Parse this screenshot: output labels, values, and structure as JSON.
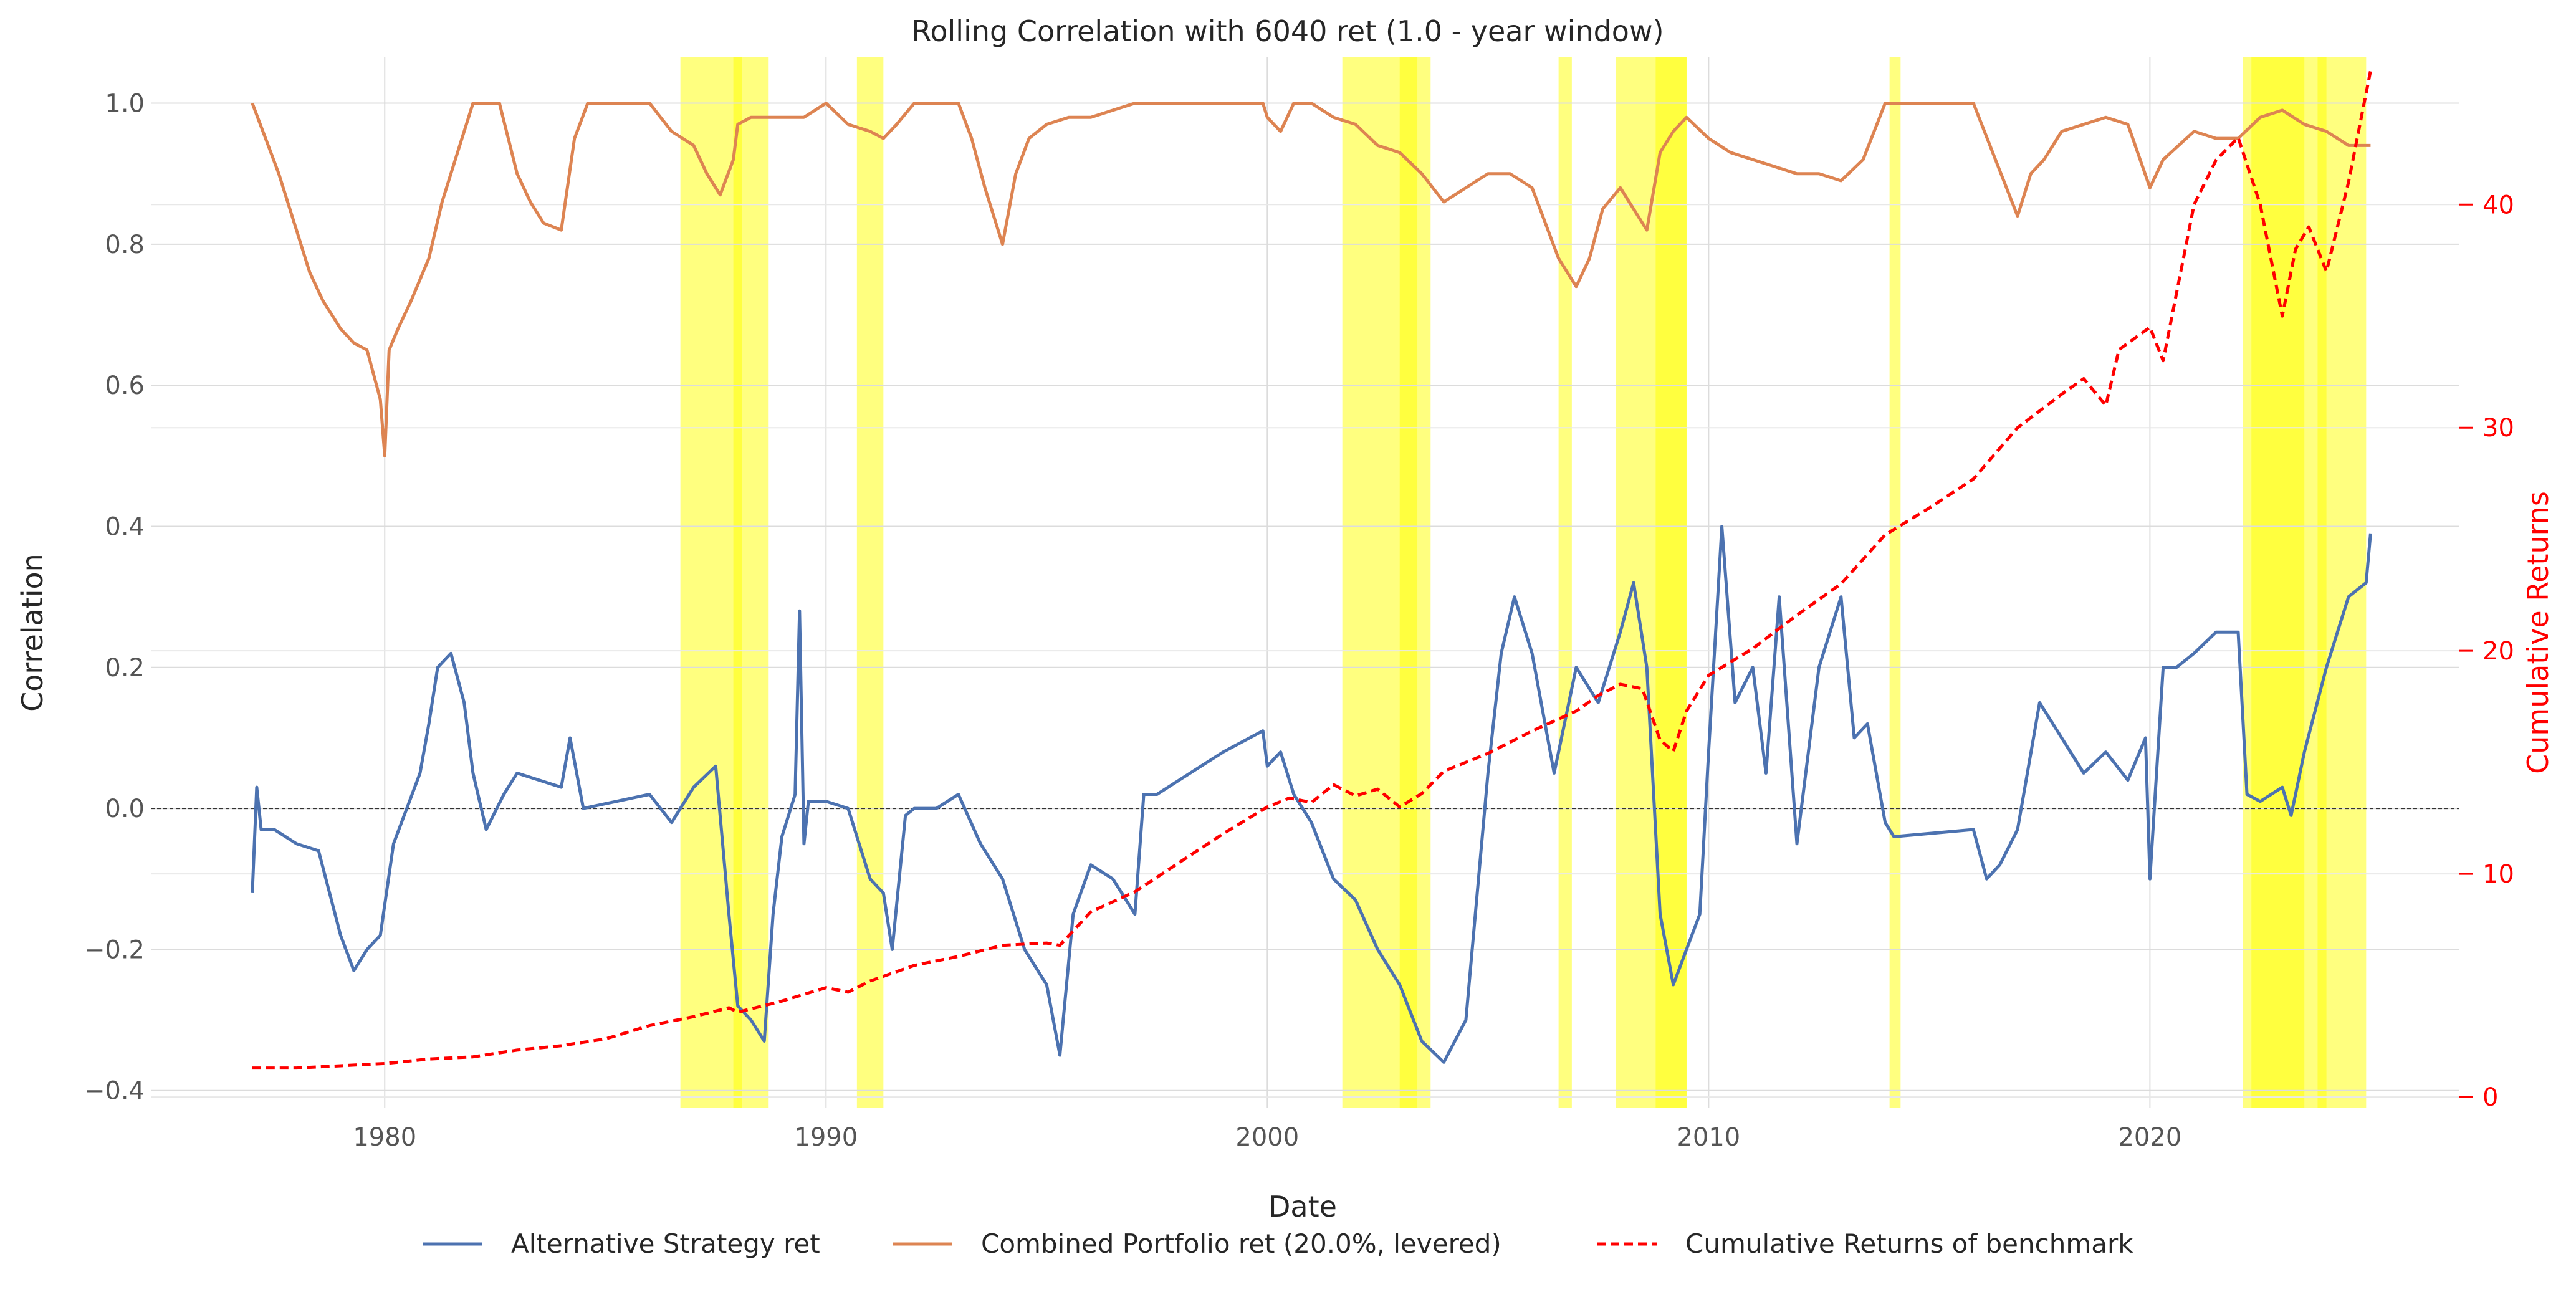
{
  "chart_data": {
    "type": "line",
    "title": "Rolling Correlation with 6040 ret (1.0 - year window)",
    "xlabel": "Date",
    "ylabel": "Correlation",
    "ylabel_right": "Cumulative Returns",
    "xlim": [
      1974.7,
      2027.0
    ],
    "ylim": [
      -0.425,
      1.065
    ],
    "ylim_right": [
      -0.5,
      46.6
    ],
    "x_ticks": [
      1980,
      1990,
      2000,
      2010,
      2020
    ],
    "x_tick_labels": [
      "1980",
      "1990",
      "2000",
      "2010",
      "2020"
    ],
    "y_ticks": [
      -0.4,
      -0.2,
      0.0,
      0.2,
      0.4,
      0.6,
      0.8,
      1.0
    ],
    "y_tick_labels": [
      "−0.4",
      "−0.2",
      "0.0",
      "0.2",
      "0.4",
      "0.6",
      "0.8",
      "1.0"
    ],
    "y_right_ticks": [
      0,
      10,
      20,
      30,
      40
    ],
    "y_right_tick_labels": [
      "0",
      "10",
      "20",
      "30",
      "40"
    ],
    "grid": true,
    "zero_line": 0.0,
    "legend_position": "bottom-center",
    "colors": {
      "alt": "#4c72b0",
      "combined": "#dd8452",
      "benchmark": "#ff0000",
      "shade": "#ffff00",
      "right_axis": "#ff0000"
    },
    "shaded_periods": [
      [
        1986.7,
        1988.7
      ],
      [
        1987.9,
        1988.1
      ],
      [
        1990.7,
        1991.3
      ],
      [
        2001.7,
        2003.7
      ],
      [
        2003.0,
        2003.4
      ],
      [
        2006.6,
        2006.9
      ],
      [
        2007.9,
        2009.5
      ],
      [
        2008.8,
        2009.5
      ],
      [
        2014.1,
        2014.35
      ],
      [
        2022.1,
        2024.9
      ],
      [
        2022.3,
        2023.5
      ],
      [
        2023.8,
        2024.0
      ]
    ],
    "series": [
      {
        "name": "Alternative Strategy ret",
        "axis": "left",
        "style": "solid",
        "x": [
          1977.0,
          1977.1,
          1977.2,
          1977.5,
          1978.0,
          1978.5,
          1979.0,
          1979.3,
          1979.6,
          1979.9,
          1980.2,
          1980.5,
          1980.8,
          1981.0,
          1981.2,
          1981.5,
          1981.8,
          1982.0,
          1982.3,
          1982.7,
          1983.0,
          1983.5,
          1984.0,
          1984.2,
          1984.5,
          1986.0,
          1986.5,
          1987.0,
          1987.5,
          1987.8,
          1988.0,
          1988.3,
          1988.6,
          1988.8,
          1989.0,
          1989.3,
          1989.4,
          1989.5,
          1989.6,
          1990.0,
          1990.5,
          1991.0,
          1991.3,
          1991.5,
          1991.8,
          1992.0,
          1992.5,
          1993.0,
          1993.5,
          1994.0,
          1994.5,
          1995.0,
          1995.3,
          1995.6,
          1996.0,
          1996.5,
          1997.0,
          1997.2,
          1997.5,
          1998.0,
          1999.0,
          1999.9,
          2000.0,
          2000.3,
          2000.6,
          2001.0,
          2001.5,
          2002.0,
          2002.5,
          2003.0,
          2003.5,
          2004.0,
          2004.5,
          2005.0,
          2005.3,
          2005.6,
          2006.0,
          2006.5,
          2007.0,
          2007.5,
          2008.0,
          2008.3,
          2008.6,
          2008.9,
          2009.2,
          2009.5,
          2009.8,
          2010.0,
          2010.3,
          2010.6,
          2011.0,
          2011.3,
          2011.6,
          2012.0,
          2012.5,
          2013.0,
          2013.3,
          2013.6,
          2014.0,
          2014.2,
          2016.0,
          2016.3,
          2016.6,
          2017.0,
          2017.5,
          2018.0,
          2018.5,
          2019.0,
          2019.5,
          2019.9,
          2020.0,
          2020.3,
          2020.6,
          2021.0,
          2021.5,
          2022.0,
          2022.2,
          2022.5,
          2023.0,
          2023.2,
          2023.5,
          2024.0,
          2024.5,
          2024.9,
          2025.0
        ],
        "y": [
          -0.12,
          0.03,
          -0.03,
          -0.03,
          -0.05,
          -0.06,
          -0.18,
          -0.23,
          -0.2,
          -0.18,
          -0.05,
          0.0,
          0.05,
          0.12,
          0.2,
          0.22,
          0.15,
          0.05,
          -0.03,
          0.02,
          0.05,
          0.04,
          0.03,
          0.1,
          0.0,
          0.02,
          -0.02,
          0.03,
          0.06,
          -0.15,
          -0.28,
          -0.3,
          -0.33,
          -0.15,
          -0.04,
          0.02,
          0.28,
          -0.05,
          0.01,
          0.01,
          0.0,
          -0.1,
          -0.12,
          -0.2,
          -0.01,
          0.0,
          0.0,
          0.02,
          -0.05,
          -0.1,
          -0.2,
          -0.25,
          -0.35,
          -0.15,
          -0.08,
          -0.1,
          -0.15,
          0.02,
          0.02,
          0.04,
          0.08,
          0.11,
          0.06,
          0.08,
          0.02,
          -0.02,
          -0.1,
          -0.13,
          -0.2,
          -0.25,
          -0.33,
          -0.36,
          -0.3,
          0.05,
          0.22,
          0.3,
          0.22,
          0.05,
          0.2,
          0.15,
          0.25,
          0.32,
          0.2,
          -0.15,
          -0.25,
          -0.2,
          -0.15,
          0.08,
          0.4,
          0.15,
          0.2,
          0.05,
          0.3,
          -0.05,
          0.2,
          0.3,
          0.1,
          0.12,
          -0.02,
          -0.04,
          -0.03,
          -0.1,
          -0.08,
          -0.03,
          0.15,
          0.1,
          0.05,
          0.08,
          0.04,
          0.1,
          -0.1,
          0.2,
          0.2,
          0.22,
          0.25,
          0.25,
          0.02,
          0.01,
          0.03,
          -0.01,
          0.08,
          0.2,
          0.3,
          0.32,
          0.39
        ]
      },
      {
        "name": "Combined Portfolio ret (20.0%, levered)",
        "axis": "left",
        "style": "solid",
        "x": [
          1977.0,
          1977.3,
          1977.6,
          1978.0,
          1978.3,
          1978.6,
          1979.0,
          1979.3,
          1979.6,
          1979.9,
          1980.0,
          1980.1,
          1980.3,
          1980.6,
          1981.0,
          1981.3,
          1981.6,
          1982.0,
          1982.3,
          1982.6,
          1983.0,
          1983.3,
          1983.6,
          1984.0,
          1984.3,
          1984.6,
          1985.0,
          1985.5,
          1986.0,
          1986.5,
          1987.0,
          1987.3,
          1987.6,
          1987.9,
          1988.0,
          1988.3,
          1988.6,
          1989.0,
          1989.5,
          1990.0,
          1990.5,
          1991.0,
          1991.3,
          1991.6,
          1992.0,
          1992.5,
          1993.0,
          1993.3,
          1993.6,
          1993.9,
          1994.0,
          1994.3,
          1994.6,
          1995.0,
          1995.5,
          1996.0,
          1996.5,
          1997.0,
          1998.0,
          1999.0,
          1999.9,
          2000.0,
          2000.3,
          2000.6,
          2001.0,
          2001.5,
          2002.0,
          2002.5,
          2003.0,
          2003.5,
          2004.0,
          2004.5,
          2005.0,
          2005.5,
          2006.0,
          2006.3,
          2006.6,
          2007.0,
          2007.3,
          2007.6,
          2008.0,
          2008.3,
          2008.6,
          2008.9,
          2009.2,
          2009.5,
          2010.0,
          2010.5,
          2011.0,
          2011.5,
          2012.0,
          2012.5,
          2013.0,
          2013.5,
          2014.0,
          2014.2,
          2015.0,
          2016.0,
          2016.5,
          2017.0,
          2017.3,
          2017.6,
          2018.0,
          2018.5,
          2019.0,
          2019.5,
          2020.0,
          2020.3,
          2021.0,
          2021.5,
          2022.0,
          2022.5,
          2023.0,
          2023.5,
          2024.0,
          2024.5,
          2025.0
        ],
        "y": [
          1.0,
          0.95,
          0.9,
          0.82,
          0.76,
          0.72,
          0.68,
          0.66,
          0.65,
          0.58,
          0.5,
          0.65,
          0.68,
          0.72,
          0.78,
          0.86,
          0.92,
          1.0,
          1.0,
          1.0,
          0.9,
          0.86,
          0.83,
          0.82,
          0.95,
          1.0,
          1.0,
          1.0,
          1.0,
          0.96,
          0.94,
          0.9,
          0.87,
          0.92,
          0.97,
          0.98,
          0.98,
          0.98,
          0.98,
          1.0,
          0.97,
          0.96,
          0.95,
          0.97,
          1.0,
          1.0,
          1.0,
          0.95,
          0.88,
          0.82,
          0.8,
          0.9,
          0.95,
          0.97,
          0.98,
          0.98,
          0.99,
          1.0,
          1.0,
          1.0,
          1.0,
          0.98,
          0.96,
          1.0,
          1.0,
          0.98,
          0.97,
          0.94,
          0.93,
          0.9,
          0.86,
          0.88,
          0.9,
          0.9,
          0.88,
          0.83,
          0.78,
          0.74,
          0.78,
          0.85,
          0.88,
          0.85,
          0.82,
          0.93,
          0.96,
          0.98,
          0.95,
          0.93,
          0.92,
          0.91,
          0.9,
          0.9,
          0.89,
          0.92,
          1.0,
          1.0,
          1.0,
          1.0,
          0.92,
          0.84,
          0.9,
          0.92,
          0.96,
          0.97,
          0.98,
          0.97,
          0.88,
          0.92,
          0.96,
          0.95,
          0.95,
          0.98,
          0.99,
          0.97,
          0.96,
          0.94,
          0.94
        ]
      },
      {
        "name": "Cumulative Returns of benchmark",
        "axis": "right",
        "style": "dashed",
        "x": [
          1977.0,
          1978.0,
          1979.0,
          1980.0,
          1981.0,
          1982.0,
          1983.0,
          1984.0,
          1985.0,
          1986.0,
          1987.0,
          1987.8,
          1988.0,
          1989.0,
          1990.0,
          1990.5,
          1991.0,
          1992.0,
          1993.0,
          1994.0,
          1995.0,
          1995.3,
          1996.0,
          1997.0,
          1998.0,
          1999.0,
          2000.0,
          2000.5,
          2001.0,
          2001.5,
          2002.0,
          2002.5,
          2003.0,
          2003.5,
          2004.0,
          2005.0,
          2006.0,
          2007.0,
          2007.5,
          2008.0,
          2008.5,
          2008.9,
          2009.2,
          2009.5,
          2010.0,
          2011.0,
          2012.0,
          2013.0,
          2014.0,
          2015.0,
          2016.0,
          2017.0,
          2018.0,
          2018.5,
          2019.0,
          2019.3,
          2020.0,
          2020.3,
          2021.0,
          2021.5,
          2022.0,
          2022.5,
          2022.8,
          2023.0,
          2023.3,
          2023.6,
          2024.0,
          2024.5,
          2024.8,
          2025.0
        ],
        "y": [
          1.3,
          1.3,
          1.4,
          1.5,
          1.7,
          1.8,
          2.1,
          2.3,
          2.6,
          3.2,
          3.6,
          4.0,
          3.8,
          4.3,
          4.9,
          4.7,
          5.2,
          5.9,
          6.3,
          6.8,
          6.9,
          6.8,
          8.3,
          9.2,
          10.5,
          11.8,
          13.0,
          13.4,
          13.2,
          14.0,
          13.5,
          13.8,
          13.0,
          13.6,
          14.6,
          15.4,
          16.4,
          17.3,
          18.0,
          18.5,
          18.3,
          16.0,
          15.5,
          17.3,
          18.9,
          20.1,
          21.6,
          23.0,
          25.2,
          26.4,
          27.7,
          30.0,
          31.5,
          32.2,
          31.0,
          33.5,
          34.5,
          33.0,
          40.0,
          42.0,
          43.0,
          40.0,
          37.0,
          35.0,
          38.0,
          39.0,
          37.0,
          41.0,
          44.0,
          46.0
        ]
      }
    ]
  }
}
